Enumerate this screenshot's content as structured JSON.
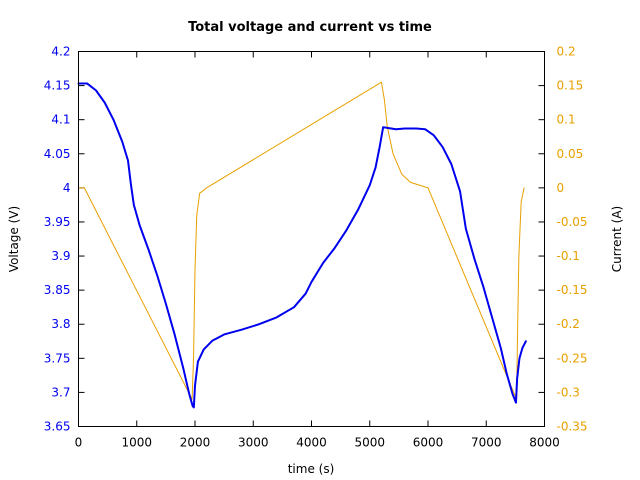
{
  "chart_data": {
    "type": "line",
    "title": "Total voltage and current vs time",
    "xlabel": "time (s)",
    "ylabel_left": "Voltage (V)",
    "ylabel_right": "Current (A)",
    "xlim": [
      0,
      8000
    ],
    "ylim_left": [
      3.65,
      4.2
    ],
    "ylim_right": [
      -0.35,
      0.2
    ],
    "x_ticks": [
      "0",
      "1000",
      "2000",
      "3000",
      "4000",
      "5000",
      "6000",
      "7000",
      "8000"
    ],
    "y_ticks_left": [
      "3.65",
      "3.7",
      "3.75",
      "3.8",
      "3.85",
      "3.9",
      "3.95",
      "4",
      "4.05",
      "4.1",
      "4.15",
      "4.2"
    ],
    "y_ticks_right": [
      "-0.35",
      "-0.3",
      "-0.25",
      "-0.2",
      "-0.15",
      "-0.1",
      "-0.05",
      "0",
      "0.05",
      "0.1",
      "0.15",
      "0.2"
    ],
    "grid": false,
    "colors": {
      "voltage": "#0000ee",
      "current": "#e8a000",
      "left_axis": "#0000ee",
      "right_axis": "#e8a000"
    },
    "series": [
      {
        "axis": "left",
        "points": [
          [
            0,
            4.153
          ],
          [
            150,
            4.153
          ],
          [
            300,
            4.143
          ],
          [
            450,
            4.125
          ],
          [
            600,
            4.1
          ],
          [
            750,
            4.068
          ],
          [
            850,
            4.04
          ],
          [
            900,
            4.005
          ],
          [
            950,
            3.975
          ],
          [
            1050,
            3.945
          ],
          [
            1200,
            3.91
          ],
          [
            1350,
            3.872
          ],
          [
            1500,
            3.83
          ],
          [
            1650,
            3.785
          ],
          [
            1800,
            3.735
          ],
          [
            1900,
            3.698
          ],
          [
            1960,
            3.68
          ],
          [
            1980,
            3.678
          ],
          [
            2000,
            3.71
          ],
          [
            2050,
            3.745
          ],
          [
            2150,
            3.763
          ],
          [
            2300,
            3.776
          ],
          [
            2500,
            3.785
          ],
          [
            2800,
            3.792
          ],
          [
            3100,
            3.8
          ],
          [
            3400,
            3.81
          ],
          [
            3700,
            3.825
          ],
          [
            3900,
            3.845
          ],
          [
            4000,
            3.862
          ],
          [
            4200,
            3.89
          ],
          [
            4400,
            3.912
          ],
          [
            4600,
            3.938
          ],
          [
            4800,
            3.968
          ],
          [
            5000,
            4.004
          ],
          [
            5100,
            4.03
          ],
          [
            5170,
            4.06
          ],
          [
            5230,
            4.089
          ],
          [
            5300,
            4.088
          ],
          [
            5450,
            4.086
          ],
          [
            5600,
            4.087
          ],
          [
            5800,
            4.087
          ],
          [
            5950,
            4.086
          ],
          [
            6100,
            4.077
          ],
          [
            6250,
            4.06
          ],
          [
            6400,
            4.035
          ],
          [
            6550,
            3.995
          ],
          [
            6650,
            3.94
          ],
          [
            6800,
            3.895
          ],
          [
            6950,
            3.855
          ],
          [
            7100,
            3.81
          ],
          [
            7250,
            3.765
          ],
          [
            7350,
            3.728
          ],
          [
            7450,
            3.698
          ],
          [
            7510,
            3.685
          ],
          [
            7530,
            3.72
          ],
          [
            7570,
            3.75
          ],
          [
            7620,
            3.765
          ],
          [
            7680,
            3.775
          ]
        ]
      },
      {
        "axis": "right",
        "points": [
          [
            0,
            0.0
          ],
          [
            100,
            0.0
          ],
          [
            1950,
            -0.31
          ],
          [
            1975,
            -0.25
          ],
          [
            2000,
            -0.12
          ],
          [
            2030,
            -0.04
          ],
          [
            2080,
            -0.008
          ],
          [
            2200,
            0.0
          ],
          [
            5200,
            0.155
          ],
          [
            5250,
            0.13
          ],
          [
            5300,
            0.09
          ],
          [
            5400,
            0.05
          ],
          [
            5550,
            0.02
          ],
          [
            5700,
            0.008
          ],
          [
            5850,
            0.004
          ],
          [
            6000,
            0.0
          ],
          [
            7520,
            -0.31
          ],
          [
            7540,
            -0.2
          ],
          [
            7560,
            -0.1
          ],
          [
            7600,
            -0.02
          ],
          [
            7650,
            0.0
          ]
        ]
      }
    ]
  }
}
